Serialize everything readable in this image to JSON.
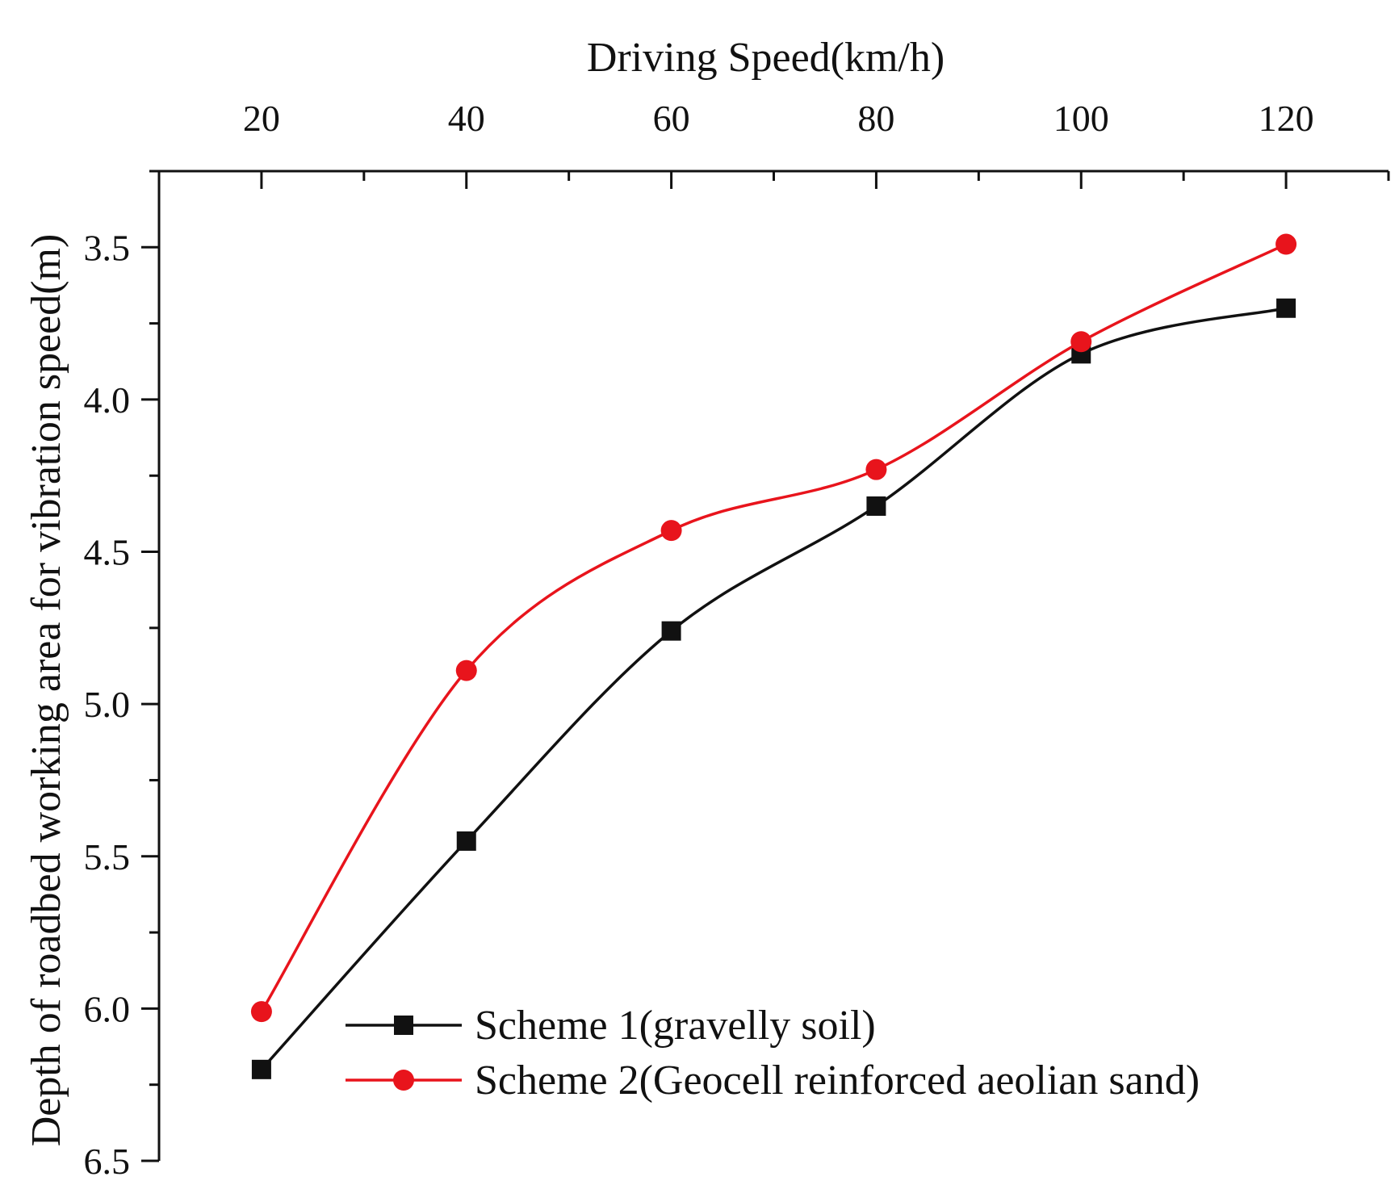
{
  "chart_data": {
    "type": "line",
    "xlabel": "Driving Speed(km/h)",
    "ylabel": "Depth of roadbed working area for vibration speed(m)",
    "x_axis_position": "top",
    "y_axis_inverted": true,
    "xlim": [
      10,
      130
    ],
    "ylim": [
      3.25,
      6.5
    ],
    "x_ticks": [
      20,
      40,
      60,
      80,
      100,
      120
    ],
    "x_tick_labels": [
      "20",
      "40",
      "60",
      "80",
      "100",
      "120"
    ],
    "y_ticks": [
      3.5,
      4.0,
      4.5,
      5.0,
      5.5,
      6.0,
      6.5
    ],
    "y_tick_labels": [
      "3.5",
      "4.0",
      "4.5",
      "5.0",
      "5.5",
      "6.0",
      "6.5"
    ],
    "grid": false,
    "legend_position": "bottom-right",
    "x": [
      20,
      40,
      60,
      80,
      100,
      120
    ],
    "series": [
      {
        "name": "Scheme 1(gravelly soil)",
        "color": "#111111",
        "marker": "square",
        "values": [
          6.2,
          5.45,
          4.76,
          4.35,
          3.85,
          3.7
        ]
      },
      {
        "name": "Scheme 2(Geocell reinforced aeolian sand)",
        "color": "#e8141c",
        "marker": "circle",
        "values": [
          6.01,
          4.89,
          4.43,
          4.23,
          3.81,
          3.49
        ]
      }
    ]
  }
}
